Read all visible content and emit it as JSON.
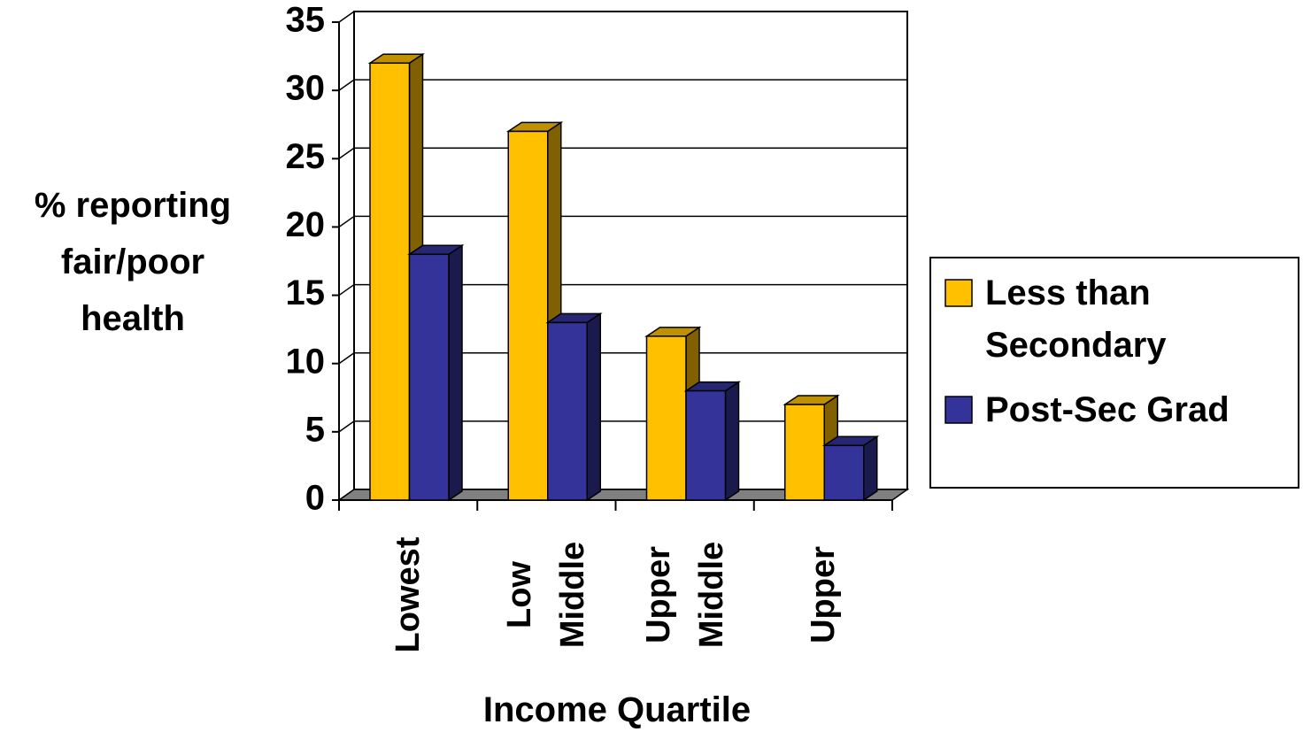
{
  "chart_data": {
    "type": "bar3d",
    "xlabel": "Income Quartile",
    "ylabel": "% reporting fair/poor health",
    "categories": [
      "Lowest",
      "Low Middle",
      "Upper Middle",
      "Upper"
    ],
    "series": [
      {
        "name": "Less than Secondary",
        "color": "#FFC000",
        "values": [
          32,
          27,
          12,
          7
        ]
      },
      {
        "name": "Post-Sec Grad",
        "color": "#333399",
        "values": [
          18,
          13,
          8,
          4
        ]
      }
    ],
    "ylim": [
      0,
      35
    ],
    "yticks": [
      0,
      5,
      10,
      15,
      20,
      25,
      30,
      35
    ],
    "grid": true,
    "legend": "right"
  }
}
